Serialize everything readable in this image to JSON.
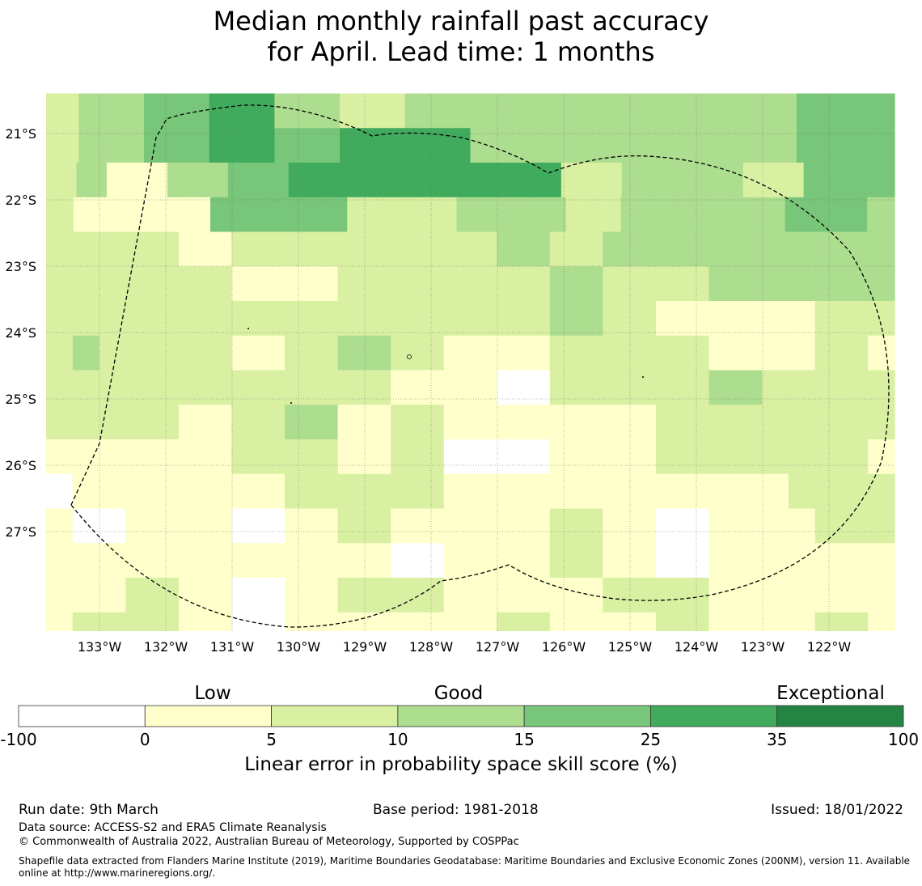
{
  "title": {
    "line1": "Median monthly rainfall past accuracy",
    "line2": "for April. Lead time: 1 months"
  },
  "map": {
    "lat_labels": [
      "21°S",
      "22°S",
      "23°S",
      "24°S",
      "25°S",
      "26°S",
      "27°S"
    ],
    "lon_labels": [
      "133°W",
      "132°W",
      "131°W",
      "130°W",
      "129°W",
      "128°W",
      "127°W",
      "126°W",
      "125°W",
      "124°W",
      "123°W",
      "122°W"
    ],
    "lon_range": [
      -133.8,
      -121.0
    ],
    "lat_range": [
      -28.5,
      -20.4
    ],
    "cell_size_deg": 0.833,
    "boundary_line": "dashed",
    "grid": "dotted",
    "skill_grid": [
      [
        2,
        3,
        3,
        4,
        4,
        5,
        5,
        3,
        3,
        2,
        2,
        3,
        3,
        3,
        3,
        3,
        3,
        3,
        3,
        3,
        3,
        3,
        3,
        4,
        4,
        4
      ],
      [
        2,
        3,
        3,
        4,
        4,
        5,
        5,
        4,
        4,
        5,
        5,
        5,
        5,
        3,
        3,
        3,
        3,
        3,
        3,
        3,
        3,
        3,
        3,
        4,
        4,
        4
      ],
      [
        2,
        3,
        1,
        1,
        3,
        3,
        4,
        4,
        5,
        5,
        5,
        5,
        5,
        5,
        5,
        5,
        5,
        2,
        2,
        3,
        3,
        3,
        3,
        2,
        2,
        4,
        4,
        4
      ],
      [
        2,
        1,
        1,
        1,
        1,
        1,
        4,
        4,
        4,
        4,
        4,
        2,
        2,
        2,
        2,
        3,
        3,
        3,
        3,
        2,
        2,
        3,
        3,
        3,
        3,
        3,
        3,
        4,
        4,
        4,
        3
      ],
      [
        2,
        2,
        2,
        2,
        2,
        1,
        1,
        2,
        2,
        2,
        2,
        2,
        2,
        2,
        2,
        2,
        2,
        3,
        3,
        2,
        2,
        3,
        3,
        3,
        3,
        3,
        3,
        3,
        3,
        3,
        3,
        3
      ],
      [
        2,
        2,
        2,
        2,
        2,
        2,
        2,
        1,
        1,
        1,
        1,
        2,
        2,
        2,
        2,
        2,
        2,
        2,
        2,
        3,
        3,
        2,
        2,
        2,
        2,
        3,
        3,
        3,
        3,
        3,
        3,
        3
      ],
      [
        2,
        2,
        2,
        2,
        2,
        2,
        2,
        2,
        2,
        2,
        2,
        2,
        2,
        2,
        2,
        2,
        2,
        2,
        2,
        3,
        3,
        2,
        2,
        1,
        1,
        1,
        1,
        1,
        1,
        2,
        2,
        2
      ],
      [
        2,
        3,
        2,
        2,
        2,
        2,
        2,
        1,
        1,
        2,
        2,
        3,
        3,
        2,
        2,
        1,
        1,
        1,
        1,
        2,
        2,
        2,
        2,
        2,
        2,
        1,
        1,
        1,
        1,
        2,
        2,
        1
      ],
      [
        2,
        2,
        2,
        2,
        2,
        2,
        2,
        2,
        2,
        2,
        2,
        2,
        2,
        1,
        1,
        1,
        1,
        0,
        0,
        2,
        2,
        2,
        2,
        2,
        2,
        3,
        3,
        2,
        2,
        2,
        2,
        2
      ],
      [
        2,
        2,
        2,
        2,
        2,
        1,
        1,
        2,
        2,
        3,
        3,
        1,
        1,
        2,
        2,
        1,
        1,
        1,
        1,
        1,
        1,
        1,
        1,
        2,
        2,
        2,
        2,
        2,
        2,
        2,
        2,
        2
      ],
      [
        1,
        1,
        1,
        1,
        1,
        1,
        1,
        2,
        2,
        2,
        2,
        1,
        1,
        2,
        2,
        0,
        0,
        0,
        0,
        1,
        1,
        1,
        1,
        2,
        2,
        2,
        2,
        2,
        2,
        2,
        2,
        1
      ],
      [
        0,
        1,
        1,
        1,
        1,
        1,
        1,
        1,
        1,
        2,
        2,
        2,
        2,
        2,
        2,
        1,
        1,
        1,
        1,
        1,
        1,
        1,
        1,
        1,
        1,
        1,
        1,
        1,
        2,
        2,
        2,
        2
      ],
      [
        1,
        0,
        0,
        1,
        1,
        1,
        1,
        0,
        0,
        1,
        1,
        2,
        2,
        1,
        1,
        1,
        1,
        1,
        1,
        2,
        2,
        1,
        1,
        0,
        0,
        1,
        1,
        1,
        1,
        2,
        2,
        2
      ],
      [
        1,
        1,
        1,
        1,
        1,
        1,
        1,
        1,
        1,
        1,
        1,
        1,
        1,
        0,
        0,
        1,
        1,
        1,
        1,
        2,
        2,
        1,
        1,
        0,
        0,
        1,
        1,
        1,
        1,
        1,
        1,
        1
      ],
      [
        1,
        1,
        1,
        2,
        2,
        1,
        1,
        0,
        0,
        1,
        1,
        2,
        2,
        2,
        2,
        1,
        1,
        1,
        1,
        1,
        1,
        2,
        2,
        2,
        2,
        1,
        1,
        1,
        1,
        1,
        1,
        1
      ],
      [
        1,
        2,
        2,
        2,
        2,
        1,
        1,
        0,
        0,
        1,
        1,
        1,
        1,
        1,
        1,
        1,
        1,
        2,
        2,
        1,
        1,
        1,
        1,
        2,
        2,
        1,
        1,
        1,
        1,
        2,
        2,
        1
      ]
    ]
  },
  "colorbar": {
    "category_low": "Low",
    "category_good": "Good",
    "category_exceptional": "Exceptional",
    "ticks": [
      "-100",
      "0",
      "5",
      "10",
      "15",
      "25",
      "35",
      "100"
    ],
    "colors": [
      "#ffffff",
      "#ffffcc",
      "#d9f0a3",
      "#addd8e",
      "#78c679",
      "#41ab5d",
      "#238443"
    ],
    "label": "Linear error in probability space skill score (%)"
  },
  "footer": {
    "run_date": "Run date: 9th March",
    "base_period": "Base period: 1981-2018",
    "issued": "Issued: 18/01/2022",
    "data_source": "Data source: ACCESS-S2 and ERA5 Climate Reanalysis",
    "copyright": "© Commonwealth of Australia 2022, Australian Bureau of Meteorology, Supported by COSPPac",
    "shapefile_line1": "Shapefile data extracted from Flanders Marine Institute (2019), Maritime Boundaries Geodatabase: Maritime Boundaries and Exclusive Economic Zones (200NM), version 11. Available",
    "shapefile_line2": "online at http://www.marineregions.org/."
  }
}
